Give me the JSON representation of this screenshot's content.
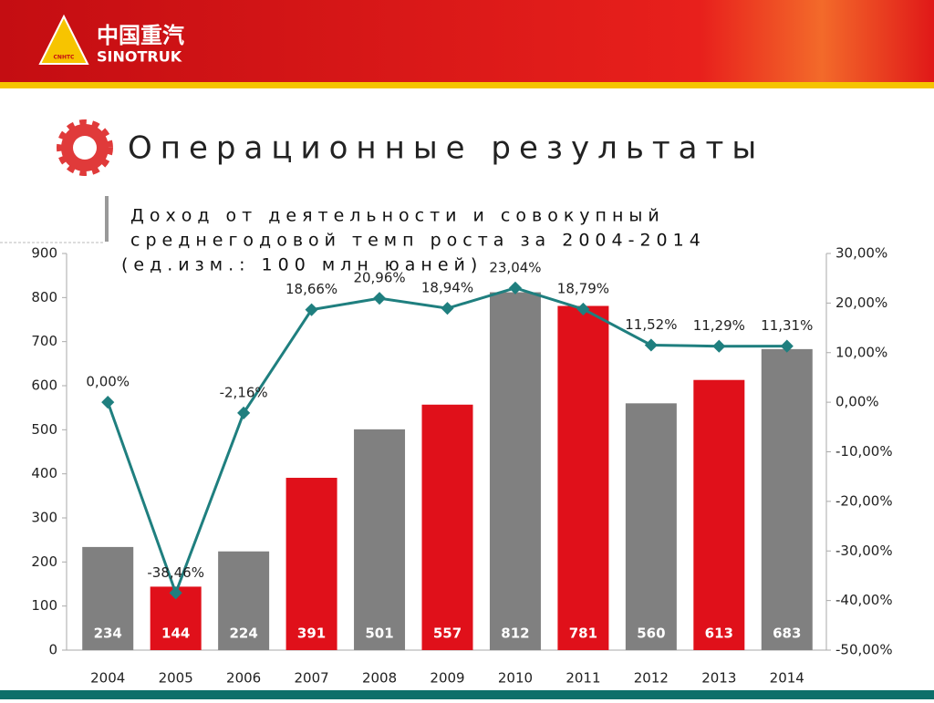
{
  "header": {
    "logo_cn": "中国重汽",
    "logo_en": "SINOTRUK",
    "logo_badge": "CNHTC",
    "title": "Операционные результаты"
  },
  "chart_data": {
    "type": "combo",
    "title_lines": [
      "Доход от деятельности и совокупный",
      "среднегодовой темп роста за 2004-2014",
      "(ед.изм.: 100 млн юаней)"
    ],
    "categories": [
      "2004",
      "2005",
      "2006",
      "2007",
      "2008",
      "2009",
      "2010",
      "2011",
      "2012",
      "2013",
      "2014"
    ],
    "series": [
      {
        "type": "bar",
        "colors": [
          "#808080",
          "#e0101a",
          "#808080",
          "#e0101a",
          "#808080",
          "#e0101a",
          "#808080",
          "#e0101a",
          "#808080",
          "#e0101a",
          "#808080"
        ],
        "values": [
          234,
          144,
          224,
          391,
          501,
          557,
          812,
          781,
          560,
          613,
          683
        ]
      },
      {
        "type": "line",
        "axis": "y2",
        "color": "#1f7f7f",
        "values": [
          0,
          -38.46,
          -2.16,
          18.66,
          20.96,
          18.94,
          23.04,
          18.79,
          11.52,
          11.29,
          11.31
        ],
        "value_labels": [
          "0,00%",
          "-38,46%",
          "-2,16%",
          "18,66%",
          "20,96%",
          "18,94%",
          "23,04%",
          "18,79%",
          "11,52%",
          "11,29%",
          "11,31%"
        ]
      }
    ],
    "ylim": [
      0,
      900
    ],
    "yticks": [
      0,
      100,
      200,
      300,
      400,
      500,
      600,
      700,
      800,
      900
    ],
    "y2lim": [
      -50,
      30
    ],
    "y2ticks": [
      {
        "value": -50,
        "label": "-50,00%"
      },
      {
        "value": -40,
        "label": "-40,00%"
      },
      {
        "value": -30,
        "label": "-30,00%"
      },
      {
        "value": -20,
        "label": "-20,00%"
      },
      {
        "value": -10,
        "label": "-10,00%"
      },
      {
        "value": 0,
        "label": "0,00%"
      },
      {
        "value": 10,
        "label": "10,00%"
      },
      {
        "value": 20,
        "label": "20,00%"
      },
      {
        "value": 30,
        "label": "30,00%"
      }
    ]
  }
}
